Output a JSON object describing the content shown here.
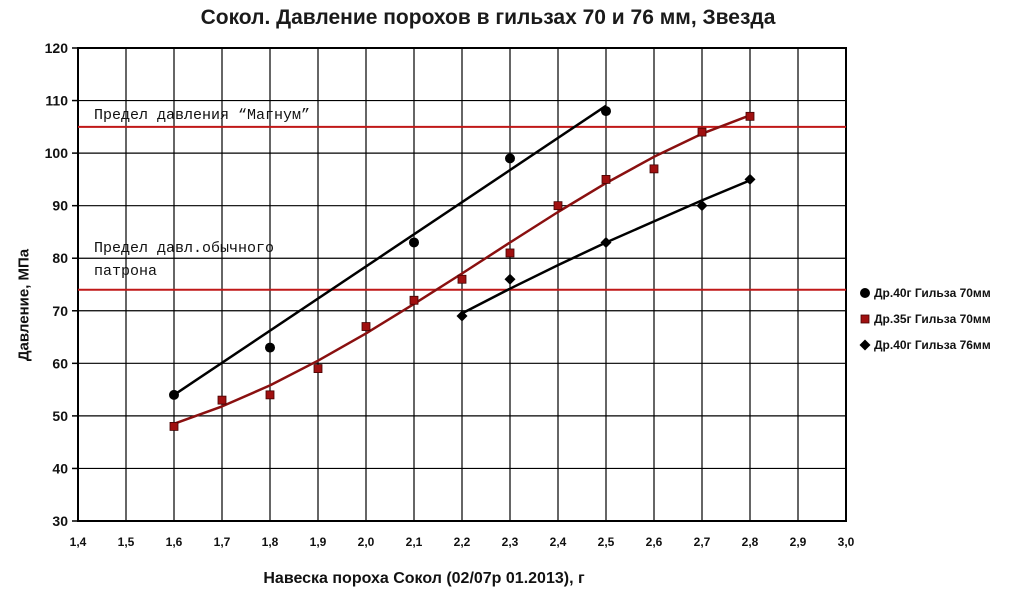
{
  "chart_data": {
    "type": "scatter",
    "title": "Сокол. Давление порохов в гильзах 70 и 76 мм, Звезда",
    "xlabel": "Навеска пороха Сокол (02/07р 01.2013), г",
    "ylabel": "Давление, МПа",
    "xlim": [
      1.4,
      3.0
    ],
    "ylim": [
      30,
      120
    ],
    "x_ticks": [
      "1,4",
      "1,5",
      "1,6",
      "1,7",
      "1,8",
      "1,9",
      "2,0",
      "2,1",
      "2,2",
      "2,3",
      "2,4",
      "2,5",
      "2,6",
      "2,7",
      "2,8",
      "2,9",
      "3,0"
    ],
    "y_ticks": [
      "30",
      "40",
      "50",
      "60",
      "70",
      "80",
      "90",
      "100",
      "110",
      "120"
    ],
    "grid": true,
    "legend_position": "right",
    "series": [
      {
        "name": "Др.40г Гильза 70мм",
        "marker": "circle",
        "color": "#000000",
        "line_color": "#000000",
        "points": [
          [
            1.6,
            54
          ],
          [
            1.8,
            63
          ],
          [
            2.1,
            83
          ],
          [
            2.3,
            99
          ],
          [
            2.5,
            108
          ]
        ],
        "trend": [
          [
            1.6,
            54
          ],
          [
            2.5,
            109
          ]
        ]
      },
      {
        "name": "Др.35г Гильза 70мм",
        "marker": "square",
        "color": "#a01010",
        "line_color": "#8a1010",
        "points": [
          [
            1.6,
            48
          ],
          [
            1.7,
            53
          ],
          [
            1.8,
            54
          ],
          [
            1.9,
            59
          ],
          [
            2.0,
            67
          ],
          [
            2.1,
            72
          ],
          [
            2.2,
            76
          ],
          [
            2.3,
            81
          ],
          [
            2.4,
            90
          ],
          [
            2.5,
            95
          ],
          [
            2.6,
            97
          ],
          [
            2.7,
            104
          ],
          [
            2.8,
            107
          ]
        ],
        "trend": [
          [
            1.6,
            48.5
          ],
          [
            1.7,
            51.8
          ],
          [
            1.8,
            55.8
          ],
          [
            1.9,
            60.5
          ],
          [
            2.0,
            65.7
          ],
          [
            2.1,
            71.3
          ],
          [
            2.2,
            77.1
          ],
          [
            2.3,
            83.0
          ],
          [
            2.4,
            88.8
          ],
          [
            2.5,
            94.3
          ],
          [
            2.6,
            99.3
          ],
          [
            2.7,
            103.7
          ],
          [
            2.8,
            107.2
          ]
        ]
      },
      {
        "name": "Др.40г Гильза 76мм",
        "marker": "diamond",
        "color": "#000000",
        "line_color": "#000000",
        "points": [
          [
            2.2,
            69
          ],
          [
            2.3,
            76
          ],
          [
            2.5,
            83
          ],
          [
            2.7,
            90
          ],
          [
            2.8,
            95
          ]
        ],
        "trend": [
          [
            2.2,
            69.5
          ],
          [
            2.3,
            74.2
          ],
          [
            2.4,
            78.7
          ],
          [
            2.5,
            83.0
          ],
          [
            2.6,
            87.0
          ],
          [
            2.7,
            91.0
          ],
          [
            2.8,
            94.8
          ]
        ]
      }
    ],
    "reference_lines": [
      {
        "y": 105,
        "color": "#c01818",
        "label": "Предел давления “Магнум”"
      },
      {
        "y": 74,
        "color": "#c01818",
        "label_lines": [
          "Предел давл.обычного",
          "патрона"
        ]
      }
    ]
  }
}
